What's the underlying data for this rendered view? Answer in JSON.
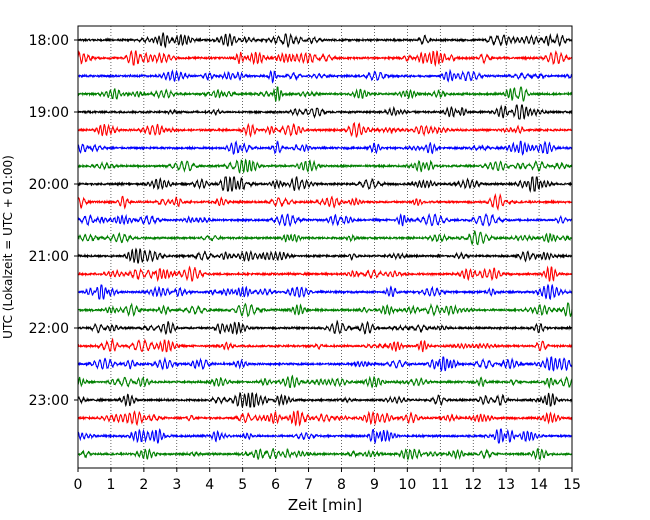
{
  "chart_data": {
    "type": "line",
    "title": "",
    "xlabel": "Zeit  [min]",
    "ylabel": "UTC (Lokalzeit = UTC + 01:00)",
    "xlim": [
      0,
      15
    ],
    "x_ticks": [
      0,
      1,
      2,
      3,
      4,
      5,
      6,
      7,
      8,
      9,
      10,
      11,
      12,
      13,
      14,
      15
    ],
    "x_grid": true,
    "y_tick_labels": [
      "18:00",
      "19:00",
      "20:00",
      "21:00",
      "22:00",
      "23:00"
    ],
    "trace_start_times": [
      "18:00",
      "18:15",
      "18:30",
      "18:45",
      "19:00",
      "19:15",
      "19:30",
      "19:45",
      "20:00",
      "20:15",
      "20:30",
      "20:45",
      "21:00",
      "21:15",
      "21:30",
      "21:45",
      "22:00",
      "22:15",
      "22:30",
      "22:45",
      "23:00",
      "23:15",
      "23:30",
      "23:45"
    ],
    "trace_colors": [
      "#000000",
      "#ff0000",
      "#0000ff",
      "#008000"
    ],
    "trace_minutes": 15
  }
}
